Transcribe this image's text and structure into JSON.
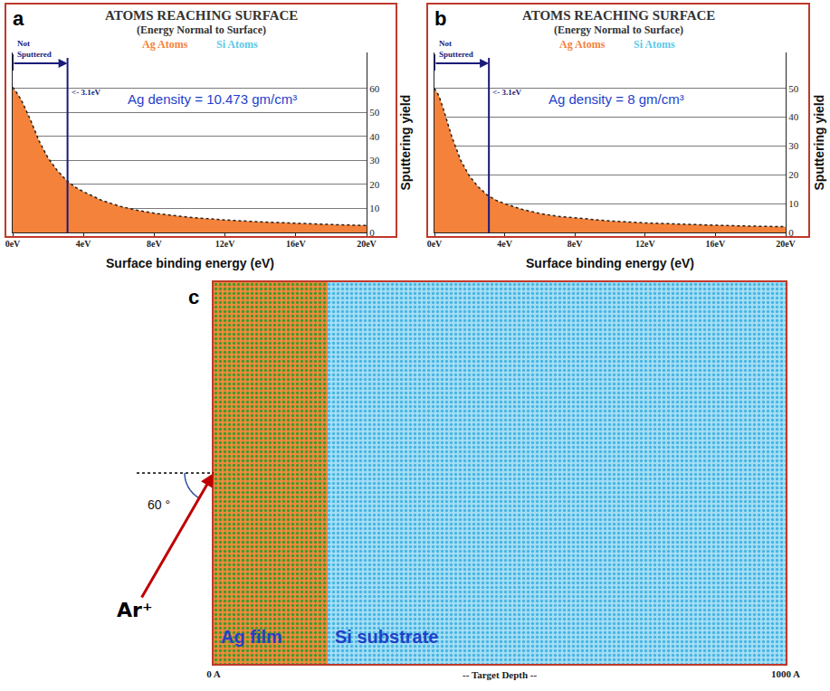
{
  "chart_data": [
    {
      "type": "area",
      "panel_label": "a",
      "title": "ATOMS REACHING SURFACE",
      "subtitle": "(Energy Normal to Surface)",
      "x_label": "Surface binding energy (eV)",
      "y_label": "Sputtering yield",
      "x": [
        0,
        0.25,
        0.5,
        0.75,
        1,
        1.5,
        2,
        2.5,
        3,
        3.5,
        4,
        5,
        6,
        7,
        8,
        10,
        12,
        14,
        16,
        18,
        20
      ],
      "series": [
        {
          "name": "Ag Atoms",
          "color": "#f4823a",
          "values": [
            60.5,
            58,
            55,
            51,
            47,
            38,
            31,
            26,
            22,
            19,
            17,
            13.5,
            11,
            9.3,
            8,
            6.3,
            5.2,
            4.4,
            3.8,
            3.3,
            2.9
          ]
        },
        {
          "name": "Si Atoms",
          "color": "#5cc8e8",
          "values": [
            null,
            null,
            null,
            null,
            null,
            null,
            null,
            null,
            null,
            null,
            null,
            null,
            null,
            null,
            null,
            null,
            null,
            null,
            null,
            null,
            null
          ]
        }
      ],
      "xlim": [
        0,
        20
      ],
      "xticks": [
        {
          "value": 0,
          "label": "0eV"
        },
        {
          "value": 4,
          "label": "4eV"
        },
        {
          "value": 8,
          "label": "8eV"
        },
        {
          "value": 12,
          "label": "12eV"
        },
        {
          "value": 16,
          "label": "16eV"
        },
        {
          "value": 20,
          "label": "20eV"
        }
      ],
      "ylim": [
        0,
        75
      ],
      "yticks": [
        0,
        10,
        20,
        30,
        40,
        50,
        60
      ],
      "grid": true,
      "legend": "top",
      "line_style": "dotted",
      "threshold": {
        "x": 3.1,
        "label": "<- 3.1eV",
        "note": "Not Sputtered"
      },
      "note": "Ag density = 10.473 gm/cm³"
    },
    {
      "type": "area",
      "panel_label": "b",
      "title": "ATOMS REACHING SURFACE",
      "subtitle": "(Energy Normal to Surface)",
      "x_label": "Surface binding energy (eV)",
      "y_label": "Sputtering yield",
      "x": [
        0,
        0.25,
        0.5,
        0.75,
        1,
        1.5,
        2,
        2.5,
        3,
        3.5,
        4,
        5,
        6,
        7,
        8,
        10,
        12,
        14,
        16,
        18,
        20
      ],
      "series": [
        {
          "name": "Ag Atoms",
          "color": "#f4823a",
          "values": [
            50,
            47.5,
            43,
            38,
            33,
            25,
            19.5,
            15.8,
            13,
            11.2,
            10,
            8,
            6.6,
            5.6,
            5,
            4,
            3.3,
            2.8,
            2.5,
            2.2,
            2
          ]
        },
        {
          "name": "Si Atoms",
          "color": "#5cc8e8",
          "values": [
            null,
            null,
            null,
            null,
            null,
            null,
            null,
            null,
            null,
            null,
            null,
            null,
            null,
            null,
            null,
            null,
            null,
            null,
            null,
            null,
            null
          ]
        }
      ],
      "xlim": [
        0,
        20
      ],
      "xticks": [
        {
          "value": 0,
          "label": "0eV"
        },
        {
          "value": 4,
          "label": "4eV"
        },
        {
          "value": 8,
          "label": "8eV"
        },
        {
          "value": 12,
          "label": "12eV"
        },
        {
          "value": 16,
          "label": "16eV"
        },
        {
          "value": 20,
          "label": "20eV"
        }
      ],
      "ylim": [
        0,
        62.5
      ],
      "yticks": [
        0,
        10,
        20,
        30,
        40,
        50
      ],
      "grid": true,
      "legend": "top",
      "line_style": "dotted",
      "threshold": {
        "x": 3.1,
        "label": "<- 3.1eV",
        "note": "Not Sputtered"
      },
      "note": "Ag density = 8 gm/cm³"
    },
    {
      "type": "layers",
      "panel_label": "c",
      "x_label": "-- Target Depth --",
      "xlim": [
        0,
        1000
      ],
      "xticks": [
        {
          "value": 0,
          "label": "0 A"
        },
        {
          "value": 1000,
          "label": "1000 A"
        }
      ],
      "ylim": [
        -500,
        500
      ],
      "tick_labels": "x",
      "layers": [
        {
          "name": "Ag film",
          "from": 0,
          "to": 200,
          "color": "#f08a3c"
        },
        {
          "name": "Si substrate",
          "from": 200,
          "to": 1000,
          "color": "#a6def5"
        }
      ],
      "incidence": {
        "label": "Ar⁺",
        "angle": 60,
        "angle_label": "60 °"
      }
    }
  ]
}
